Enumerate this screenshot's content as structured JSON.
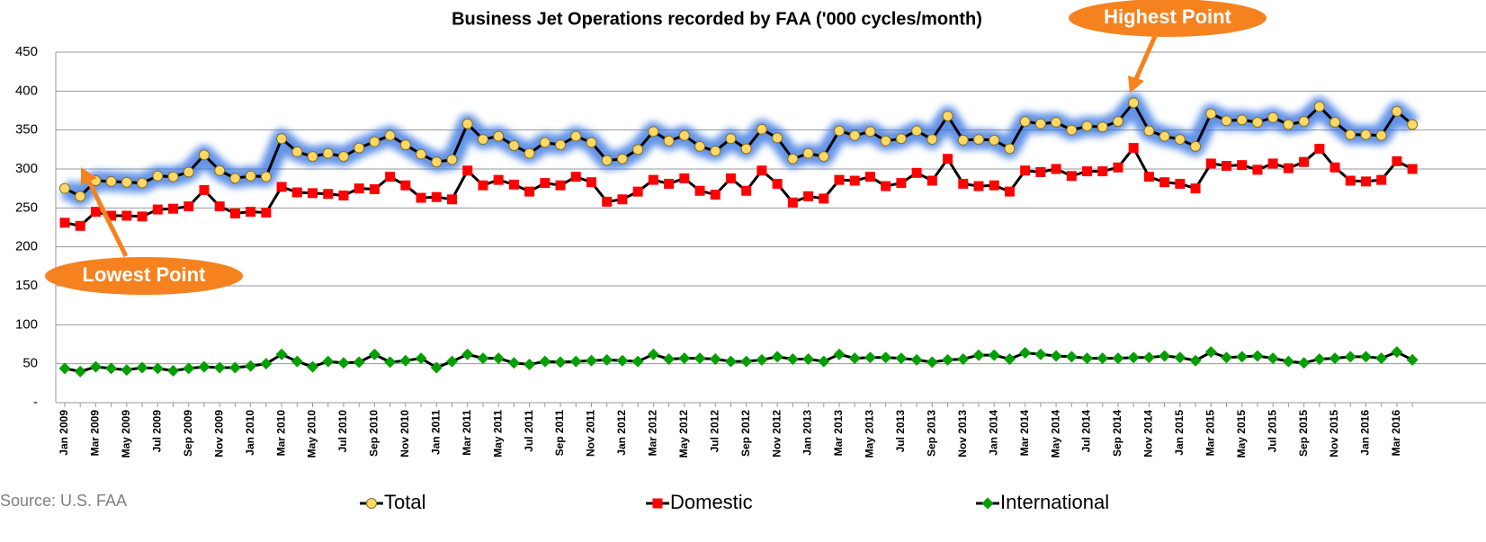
{
  "chart_data": {
    "type": "line",
    "title": "Business Jet Operations recorded by FAA ('000 cycles/month)",
    "categories": [
      "Jan 2009",
      null,
      "Mar 2009",
      null,
      "May 2009",
      null,
      "Jul 2009",
      null,
      "Sep 2009",
      null,
      "Nov 2009",
      null,
      "Jan 2010",
      null,
      "Mar 2010",
      null,
      "May 2010",
      null,
      "Jul 2010",
      null,
      "Sep 2010",
      null,
      "Nov 2010",
      null,
      "Jan 2011",
      null,
      "Mar 2011",
      null,
      "May 2011",
      null,
      "Jul 2011",
      null,
      "Sep 2011",
      null,
      "Nov 2011",
      null,
      "Jan 2012",
      null,
      "Mar 2012",
      null,
      "May 2012",
      null,
      "Jul 2012",
      null,
      "Sep 2012",
      null,
      "Nov 2012",
      null,
      "Jan 2013",
      null,
      "Mar 2013",
      null,
      "May 2013",
      null,
      "Jul 2013",
      null,
      "Sep 2013",
      null,
      "Nov 2013",
      null,
      "Jan 2014",
      null,
      "Mar 2014",
      null,
      "May 2014",
      null,
      "Jul 2014",
      null,
      "Sep 2014",
      null,
      "Nov 2014",
      null,
      "Jan 2015",
      null,
      "Mar 2015",
      null,
      "May 2015",
      null,
      "Jul 2015",
      null,
      "Sep 2015",
      null,
      "Nov 2015",
      null,
      "Jan 2016",
      null,
      "Mar 2016",
      null
    ],
    "series": [
      {
        "name": "Total",
        "color": "#ffd966",
        "marker": "circle",
        "glow": true,
        "values": [
          275,
          265,
          285,
          284,
          283,
          282,
          291,
          290,
          296,
          318,
          298,
          288,
          291,
          290,
          339,
          322,
          316,
          320,
          316,
          327,
          335,
          343,
          331,
          319,
          309,
          312,
          358,
          338,
          342,
          330,
          320,
          334,
          331,
          342,
          334,
          311,
          313,
          325,
          348,
          336,
          343,
          329,
          323,
          339,
          326,
          351,
          340,
          313,
          320,
          316,
          349,
          343,
          348,
          336,
          339,
          349,
          338,
          368,
          337,
          338,
          337,
          326,
          361,
          358,
          360,
          350,
          355,
          354,
          361,
          385,
          349,
          342,
          338,
          329,
          371,
          362,
          363,
          360,
          366,
          357,
          361,
          380,
          360,
          344,
          344,
          343,
          374,
          357
        ]
      },
      {
        "name": "Domestic",
        "color": "#ff0000",
        "marker": "square",
        "values": [
          231,
          227,
          245,
          240,
          240,
          239,
          248,
          249,
          252,
          273,
          252,
          243,
          245,
          244,
          277,
          270,
          269,
          268,
          266,
          275,
          274,
          290,
          279,
          263,
          264,
          261,
          298,
          279,
          286,
          280,
          271,
          282,
          279,
          290,
          283,
          258,
          261,
          271,
          286,
          281,
          288,
          272,
          267,
          288,
          272,
          298,
          281,
          257,
          265,
          262,
          286,
          285,
          290,
          278,
          282,
          295,
          285,
          313,
          281,
          278,
          279,
          271,
          298,
          296,
          300,
          291,
          297,
          297,
          302,
          327,
          290,
          283,
          281,
          275,
          307,
          304,
          305,
          299,
          307,
          301,
          309,
          326,
          302,
          285,
          284,
          286,
          310,
          300
        ]
      },
      {
        "name": "International",
        "color": "#00a000",
        "marker": "diamond",
        "values": [
          44,
          40,
          46,
          44,
          42,
          45,
          44,
          41,
          44,
          46,
          45,
          45,
          47,
          50,
          62,
          53,
          46,
          53,
          51,
          52,
          62,
          52,
          54,
          57,
          45,
          53,
          62,
          57,
          57,
          51,
          49,
          53,
          52,
          53,
          54,
          55,
          54,
          53,
          62,
          56,
          57,
          57,
          56,
          53,
          53,
          55,
          59,
          56,
          56,
          53,
          62,
          57,
          58,
          58,
          57,
          55,
          52,
          55,
          56,
          61,
          61,
          56,
          64,
          62,
          60,
          59,
          57,
          57,
          57,
          58,
          58,
          60,
          58,
          54,
          65,
          58,
          59,
          60,
          57,
          53,
          51,
          56,
          57,
          59,
          59,
          57,
          65,
          55
        ]
      }
    ],
    "ylim": [
      0,
      450
    ],
    "yticks": [
      {
        "value": 0,
        "label": "-"
      },
      50,
      100,
      150,
      200,
      250,
      300,
      350,
      400,
      450
    ],
    "grid": true,
    "annotations": [
      "Highest Point",
      "Lowest Point"
    ],
    "source": "Source: U.S. FAA"
  }
}
